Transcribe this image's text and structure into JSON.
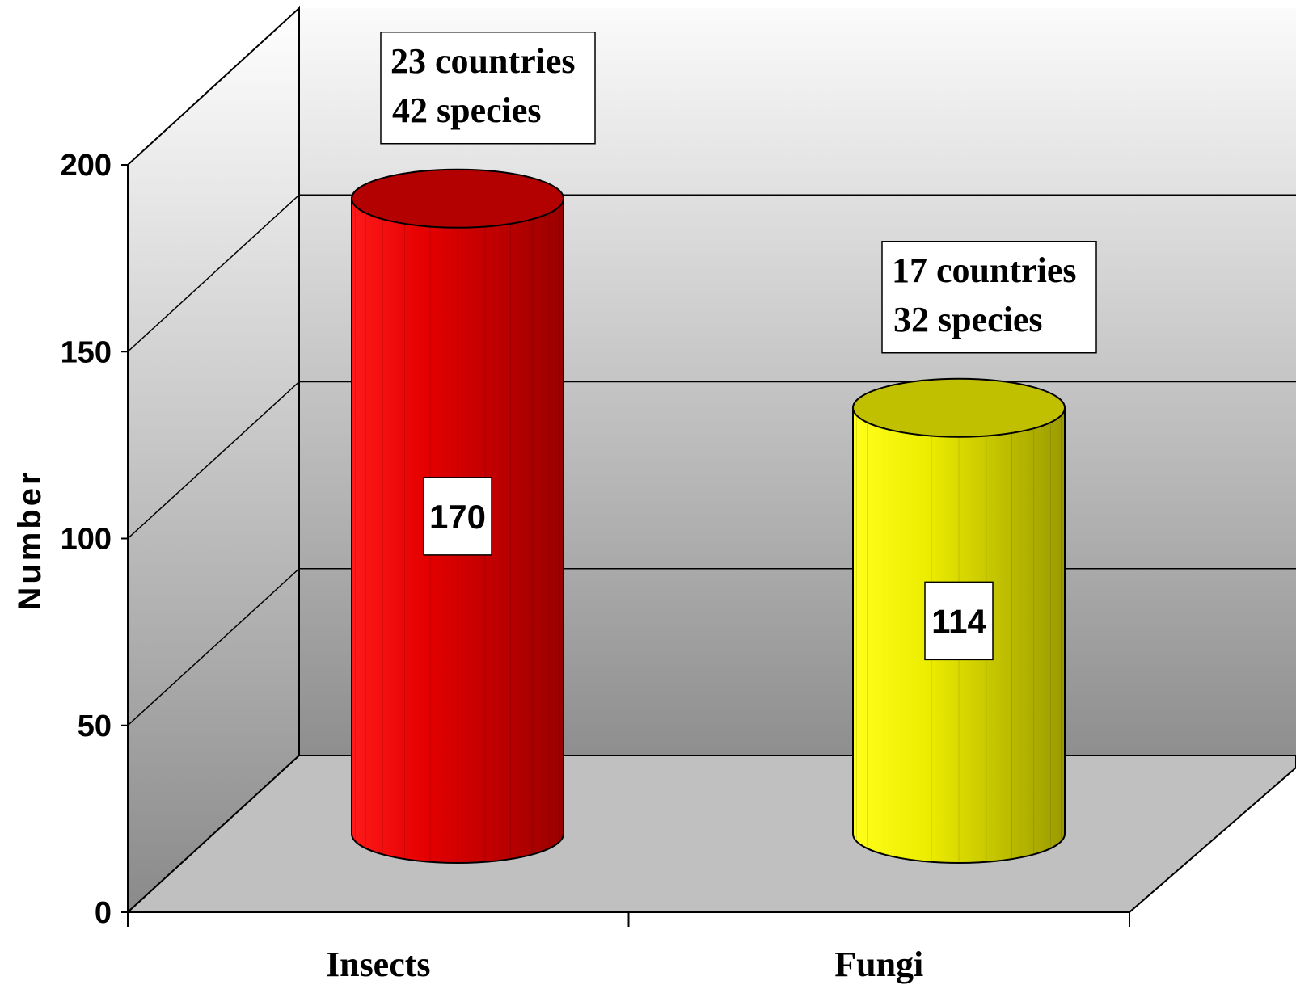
{
  "chart_data": {
    "type": "bar",
    "style": "3d-cylinder",
    "categories": [
      "Insects",
      "Fungi"
    ],
    "values": [
      170,
      114
    ],
    "data_labels": [
      "170",
      "114"
    ],
    "colors": [
      "#e00000",
      "#f0f000"
    ],
    "annotations": [
      {
        "category": "Insects",
        "lines": [
          "23 countries",
          "42 species"
        ]
      },
      {
        "category": "Fungi",
        "lines": [
          "17 countries",
          "32 species"
        ]
      }
    ],
    "ylabel": "Number",
    "ylim": [
      0,
      200
    ],
    "yticks": [
      "0",
      "50",
      "100",
      "150",
      "200"
    ],
    "grid": true,
    "legend": "none"
  }
}
